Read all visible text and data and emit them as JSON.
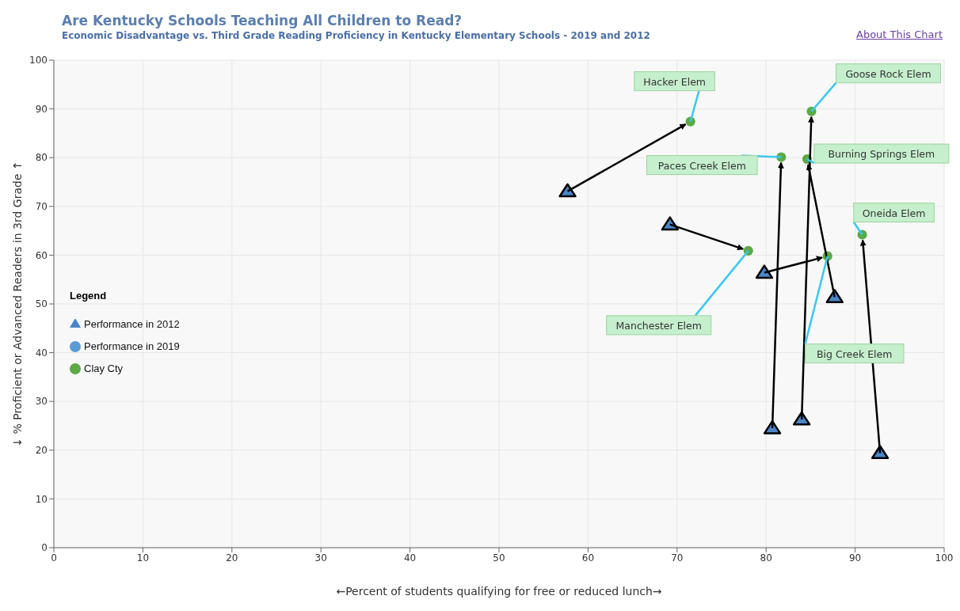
{
  "chart_data": {
    "type": "scatter",
    "title": "Are Kentucky Schools Teaching All Children to Read?",
    "subtitle": "Economic Disadvantage vs. Third Grade Reading Proficiency in Kentucky Elementary Schools - 2019 and 2012",
    "xlabel": "←Percent of students qualifying for free or reduced lunch→",
    "ylabel": "↓ % Proficient or Advanced Readers in 3rd Grade ↑",
    "legend_title": "Legend",
    "xlim": [
      0,
      100
    ],
    "ylim": [
      0,
      100
    ],
    "xticks": [
      0,
      10,
      20,
      30,
      40,
      50,
      60,
      70,
      80,
      90,
      100
    ],
    "yticks": [
      0,
      10,
      20,
      30,
      40,
      50,
      60,
      70,
      80,
      90,
      100
    ],
    "grid": true,
    "legend": "left",
    "series": [
      {
        "name": "Performance in 2012",
        "color": "#4a86c8",
        "marker": "triangle",
        "x": [
          57.7,
          69.2,
          79.8,
          87.7,
          80.7,
          84.0,
          92.8
        ],
        "values": [
          73.1,
          66.3,
          56.4,
          51.4,
          24.5,
          26.3,
          19.4
        ]
      },
      {
        "name": "Performance in 2019",
        "color": "#5b9bd5",
        "marker": "circle"
      },
      {
        "name": "Clay Cty",
        "color": "#5aaa46",
        "marker": "circle",
        "x": [
          71.5,
          78.0,
          86.9,
          84.6,
          81.7,
          85.1,
          90.8
        ],
        "values": [
          87.4,
          60.9,
          59.8,
          79.7,
          80.1,
          89.5,
          64.2
        ]
      }
    ],
    "annotations": [
      {
        "text": "Hacker Elem",
        "x": 71.5,
        "y": 87.4
      },
      {
        "text": "Manchester Elem",
        "x": 78.0,
        "y": 60.9
      },
      {
        "text": "Big Creek Elem",
        "x": 86.9,
        "y": 59.8
      },
      {
        "text": "Burning Springs Elem",
        "x": 84.6,
        "y": 79.7
      },
      {
        "text": "Paces Creek Elem",
        "x": 81.7,
        "y": 80.1
      },
      {
        "text": "Goose Rock Elem",
        "x": 85.1,
        "y": 89.5
      },
      {
        "text": "Oneida Elem",
        "x": 90.8,
        "y": 64.2
      },
      "About This Chart"
    ]
  }
}
